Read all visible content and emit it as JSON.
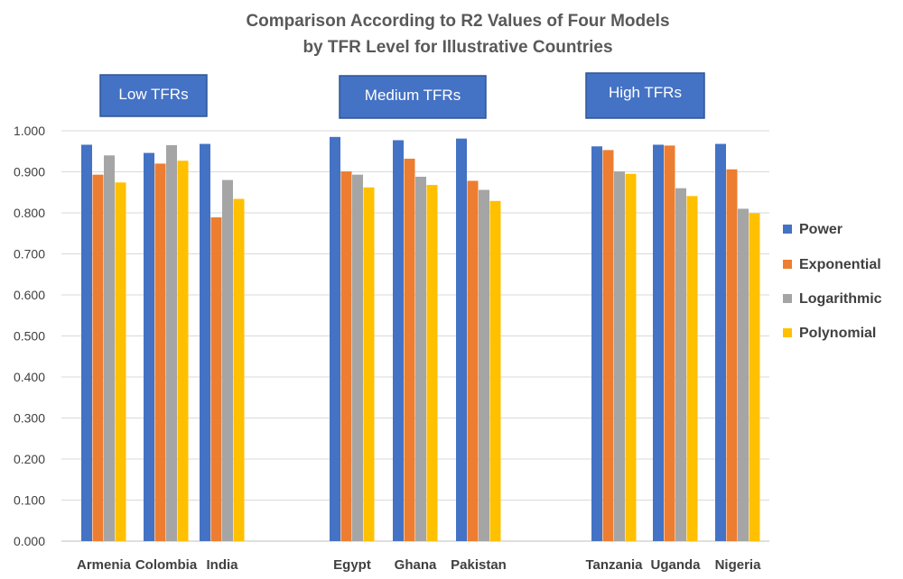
{
  "chart_data": {
    "type": "bar",
    "title": [
      "Comparison According to R2 Values of Four Models",
      "by TFR Level for Illustrative Countries"
    ],
    "categories": [
      "Armenia",
      "Colombia",
      "India",
      "Egypt",
      "Ghana",
      "Pakistan",
      "Tanzania",
      "Uganda",
      "Nigeria"
    ],
    "series": [
      {
        "name": "Power",
        "color": "#4472C4",
        "values": [
          0.966,
          0.946,
          0.968,
          0.985,
          0.977,
          0.981,
          0.962,
          0.966,
          0.968
        ]
      },
      {
        "name": "Exponential",
        "color": "#ED7D31",
        "values": [
          0.893,
          0.92,
          0.789,
          0.901,
          0.932,
          0.878,
          0.953,
          0.964,
          0.906
        ]
      },
      {
        "name": "Logarithmic",
        "color": "#A5A5A5",
        "values": [
          0.94,
          0.965,
          0.88,
          0.893,
          0.888,
          0.856,
          0.901,
          0.86,
          0.81
        ]
      },
      {
        "name": "Polynomial",
        "color": "#FFC000",
        "values": [
          0.874,
          0.927,
          0.834,
          0.862,
          0.868,
          0.829,
          0.895,
          0.841,
          0.799
        ]
      }
    ],
    "ylim": [
      0,
      1
    ],
    "yticks": [
      "0.000",
      "0.100",
      "0.200",
      "0.300",
      "0.400",
      "0.500",
      "0.600",
      "0.700",
      "0.800",
      "0.900",
      "1.000"
    ],
    "grid": true,
    "legend": "right",
    "groups": [
      {
        "label": "Low TFRs",
        "members": [
          "Armenia",
          "Colombia",
          "India"
        ]
      },
      {
        "label": "Medium TFRs",
        "members": [
          "Egypt",
          "Ghana",
          "Pakistan"
        ]
      },
      {
        "label": "High TFRs",
        "members": [
          "Tanzania",
          "Uganda",
          "Nigeria"
        ]
      }
    ]
  }
}
